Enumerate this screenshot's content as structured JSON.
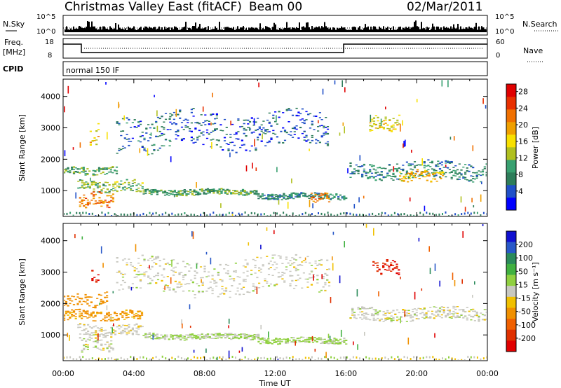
{
  "header": {
    "title": "Christmas Valley East (fitACF)",
    "beam": "Beam 00",
    "date": "02/Mar/2011"
  },
  "strips": {
    "nsky_label": "N.Sky",
    "nsky_ticks": [
      "10^5",
      "10^0"
    ],
    "nsearch_label": "N.Search",
    "nsearch_ticks": [
      "10^5",
      "10^0"
    ],
    "freq_label_1": "Freq.",
    "freq_label_2": "[MHz]",
    "freq_ticks": [
      "18",
      "8"
    ],
    "nave_label": "Nave",
    "nave_ticks": [
      "60",
      "0"
    ],
    "cpid_label": "CPID",
    "cpid_value": "normal 150 IF"
  },
  "axes": {
    "x_ticks": [
      "00:00",
      "04:00",
      "08:00",
      "12:00",
      "16:00",
      "20:00",
      "00:00"
    ],
    "xlabel": "Time UT",
    "ylabel": "Slant Range [km]",
    "y_ticks": [
      "1000",
      "2000",
      "3000",
      "4000"
    ]
  },
  "colorbars": {
    "power": {
      "label": "Power [dB]",
      "ticks": [
        "4",
        "8",
        "12",
        "16",
        "20",
        "24",
        "28"
      ],
      "colors": [
        "#0000ff",
        "#2050c8",
        "#2e7d5a",
        "#38a070",
        "#b0c020",
        "#f8e000",
        "#f0a000",
        "#f07000",
        "#e83000",
        "#e00000"
      ]
    },
    "velocity": {
      "label": "Velocity [m s⁻¹]",
      "ticks": [
        "200",
        "100",
        "50",
        "15",
        "-15",
        "-50",
        "-100",
        "-200"
      ],
      "colors": [
        "#1010d0",
        "#2858c8",
        "#2a8a5a",
        "#40b040",
        "#90d040",
        "#c8c8c0",
        "#f0c000",
        "#f09000",
        "#f06000",
        "#e03000",
        "#e00000"
      ]
    }
  },
  "chart_data": [
    {
      "type": "heatmap",
      "name": "power",
      "xlabel": "Time UT",
      "ylabel": "Slant Range [km]",
      "xlim": [
        0,
        24
      ],
      "ylim": [
        180,
        4550
      ],
      "x_ticks": [
        "00:00",
        "04:00",
        "08:00",
        "12:00",
        "16:00",
        "20:00",
        "00:00"
      ],
      "y_ticks": [
        1000,
        2000,
        3000,
        4000
      ],
      "colorbar_label": "Power [dB]",
      "colorbar_ticks": [
        4,
        8,
        12,
        16,
        20,
        24,
        28
      ],
      "bands": [
        {
          "t": [
            0.0,
            3.0
          ],
          "range": [
            1500,
            1720
          ],
          "value": 10
        },
        {
          "t": [
            0.8,
            4.5
          ],
          "range": [
            950,
            1300
          ],
          "value": 12
        },
        {
          "t": [
            4.5,
            11.0
          ],
          "range": [
            850,
            1020
          ],
          "value": 10
        },
        {
          "t": [
            11.0,
            16.0
          ],
          "range": [
            720,
            900
          ],
          "value": 8
        },
        {
          "t": [
            0.9,
            2.8
          ],
          "range": [
            480,
            950
          ],
          "value": 22
        },
        {
          "t": [
            1.5,
            2.0
          ],
          "range": [
            2500,
            3100
          ],
          "value": 18
        },
        {
          "t": [
            3.0,
            6.0
          ],
          "range": [
            2200,
            3300
          ],
          "value": 6
        },
        {
          "t": [
            6.0,
            15.0
          ],
          "range": [
            2350,
            3450
          ],
          "value": 5
        },
        {
          "t": [
            14.0,
            15.0
          ],
          "range": [
            650,
            900
          ],
          "value": 22
        },
        {
          "t": [
            16.2,
            24.0
          ],
          "range": [
            1350,
            1900
          ],
          "value": 8
        },
        {
          "t": [
            19.0,
            21.5
          ],
          "range": [
            1300,
            1620
          ],
          "value": 18
        },
        {
          "t": [
            17.2,
            19.0
          ],
          "range": [
            2900,
            3350
          ],
          "value": 16
        }
      ]
    },
    {
      "type": "heatmap",
      "name": "velocity",
      "xlabel": "Time UT",
      "ylabel": "Slant Range [km]",
      "xlim": [
        0,
        24
      ],
      "ylim": [
        180,
        4550
      ],
      "x_ticks": [
        "00:00",
        "04:00",
        "08:00",
        "12:00",
        "16:00",
        "20:00",
        "00:00"
      ],
      "y_ticks": [
        1000,
        2000,
        3000,
        4000
      ],
      "colorbar_label": "Velocity [m s⁻¹]",
      "colorbar_ticks": [
        200,
        100,
        50,
        15,
        -15,
        -50,
        -100,
        -200
      ],
      "bands": [
        {
          "t": [
            0.0,
            4.5
          ],
          "range": [
            1450,
            1750
          ],
          "value": -60
        },
        {
          "t": [
            0.8,
            4.5
          ],
          "range": [
            950,
            1300
          ],
          "value": -5
        },
        {
          "t": [
            4.5,
            11.0
          ],
          "range": [
            850,
            1020
          ],
          "value": 20
        },
        {
          "t": [
            11.0,
            16.0
          ],
          "range": [
            720,
            900
          ],
          "value": 25
        },
        {
          "t": [
            0.9,
            2.8
          ],
          "range": [
            480,
            950
          ],
          "value": 0
        },
        {
          "t": [
            0.0,
            2.5
          ],
          "range": [
            1900,
            2300
          ],
          "value": -80
        },
        {
          "t": [
            1.6,
            2.0
          ],
          "range": [
            2600,
            3100
          ],
          "value": -200
        },
        {
          "t": [
            3.0,
            15.0
          ],
          "range": [
            2300,
            3400
          ],
          "value": 0
        },
        {
          "t": [
            16.2,
            24.0
          ],
          "range": [
            1450,
            1850
          ],
          "value": 0
        },
        {
          "t": [
            17.5,
            19.0
          ],
          "range": [
            2950,
            3350
          ],
          "value": -200
        }
      ]
    }
  ]
}
